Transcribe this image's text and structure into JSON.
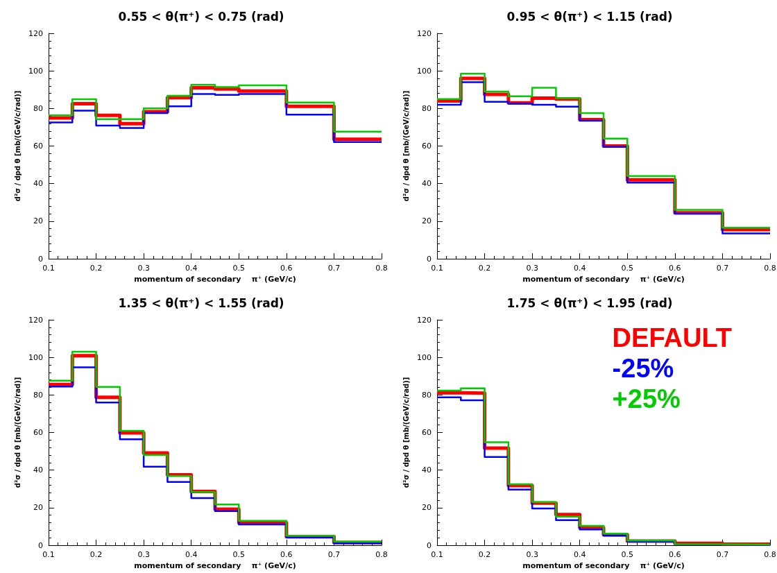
{
  "chart_data": [
    {
      "type": "histogram",
      "title": "0.55 < θ(π⁺) < 0.75 (rad)",
      "xlabel": "momentum of secondary    π⁺ (GeV/c)",
      "ylabel": "d²σ / dpd θ [mb/(GeV/c/rad)]",
      "bins": [
        0.1,
        0.15,
        0.2,
        0.25,
        0.3,
        0.35,
        0.4,
        0.45,
        0.5,
        0.6,
        0.7,
        0.8
      ],
      "xlim": [
        0.1,
        0.8
      ],
      "xticks": [
        0.1,
        0.2,
        0.3,
        0.4,
        0.5,
        0.6,
        0.7,
        0.8
      ],
      "ylim": [
        0,
        120
      ],
      "yticks": [
        0,
        20,
        40,
        60,
        80,
        100,
        120
      ],
      "grid": false,
      "legend": false,
      "series": [
        {
          "color": "#ff0000",
          "values": [
            75,
            82.5,
            76.3,
            71.9,
            78.3,
            85.8,
            91,
            90.4,
            89.3,
            81.1,
            63.6
          ]
        },
        {
          "color": "#0000ff",
          "values": [
            72.6,
            78.8,
            70.9,
            69.6,
            77.5,
            81.1,
            87.7,
            87.2,
            87.7,
            76.7,
            62.1
          ]
        },
        {
          "color": "#00cc00",
          "values": [
            76.3,
            84.9,
            74.3,
            74.3,
            80,
            86.8,
            92.6,
            91.4,
            92.3,
            83.2,
            67.7
          ]
        }
      ]
    },
    {
      "type": "histogram",
      "title": "0.95 < θ(π⁺) < 1.15 (rad)",
      "xlabel": "momentum of secondary    π⁺ (GeV/c)",
      "ylabel": "d²σ / dpd θ [mb/(GeV/c/rad)]",
      "bins": [
        0.1,
        0.15,
        0.2,
        0.25,
        0.3,
        0.35,
        0.4,
        0.45,
        0.5,
        0.6,
        0.7,
        0.8
      ],
      "xlim": [
        0.1,
        0.8
      ],
      "xticks": [
        0.1,
        0.2,
        0.3,
        0.4,
        0.5,
        0.6,
        0.7,
        0.8
      ],
      "ylim": [
        0,
        120
      ],
      "yticks": [
        0,
        20,
        40,
        60,
        80,
        100,
        120
      ],
      "grid": false,
      "legend": false,
      "series": [
        {
          "color": "#ff0000",
          "values": [
            84,
            96,
            87.5,
            83,
            85.5,
            85,
            74,
            60,
            42,
            24.5,
            15.5
          ]
        },
        {
          "color": "#0000ff",
          "values": [
            82,
            94,
            83.5,
            82.5,
            82,
            81,
            73.5,
            59.5,
            40.5,
            24,
            13.5
          ]
        },
        {
          "color": "#00cc00",
          "values": [
            85,
            98.5,
            89,
            86.5,
            91,
            85.5,
            77.5,
            64,
            44,
            26,
            16.5
          ]
        }
      ]
    },
    {
      "type": "histogram",
      "title": "1.35 < θ(π⁺) < 1.55 (rad)",
      "xlabel": "momentum of secondary    π⁺ (GeV/c)",
      "ylabel": "d²σ / dpd θ [mb/(GeV/c/rad)]",
      "bins": [
        0.1,
        0.15,
        0.2,
        0.25,
        0.3,
        0.35,
        0.4,
        0.45,
        0.5,
        0.6,
        0.7,
        0.8
      ],
      "xlim": [
        0.1,
        0.8
      ],
      "xticks": [
        0.1,
        0.2,
        0.3,
        0.4,
        0.5,
        0.6,
        0.7,
        0.8
      ],
      "ylim": [
        0,
        120
      ],
      "yticks": [
        0,
        20,
        40,
        60,
        80,
        100,
        120
      ],
      "grid": false,
      "legend": false,
      "series": [
        {
          "color": "#ff0000",
          "values": [
            85.6,
            100.9,
            78.7,
            59.8,
            49.1,
            37.5,
            28.6,
            19.2,
            12,
            4.6,
            1.5
          ]
        },
        {
          "color": "#0000ff",
          "values": [
            84.5,
            94.7,
            76,
            56.4,
            41.8,
            33.7,
            25.1,
            18.2,
            11.1,
            4.1,
            1
          ]
        },
        {
          "color": "#00cc00",
          "values": [
            87.6,
            103,
            84.3,
            60.9,
            48,
            36.8,
            28.3,
            21.7,
            13,
            5.1,
            1.9
          ]
        }
      ]
    },
    {
      "type": "histogram",
      "title": "1.75 < θ(π⁺) < 1.95 (rad)",
      "xlabel": "momentum of secondary    π⁺ (GeV/c)",
      "ylabel": "d²σ / dpd θ [mb/(GeV/c/rad)]",
      "bins": [
        0.1,
        0.15,
        0.2,
        0.25,
        0.3,
        0.35,
        0.4,
        0.45,
        0.5,
        0.6,
        0.7,
        0.8
      ],
      "xlim": [
        0.1,
        0.8
      ],
      "xticks": [
        0.1,
        0.2,
        0.3,
        0.4,
        0.5,
        0.6,
        0.7,
        0.8
      ],
      "ylim": [
        0,
        120
      ],
      "yticks": [
        0,
        20,
        40,
        60,
        80,
        100,
        120
      ],
      "grid": false,
      "legend": "top right",
      "series": [
        {
          "name": "DEFAULT",
          "color": "#ff0000",
          "values": [
            81.1,
            81,
            51.7,
            31.8,
            22.4,
            16.3,
            9.4,
            5.6,
            2.2,
            1,
            0.6
          ]
        },
        {
          "name": "-25%",
          "color": "#0000ff",
          "values": [
            78.7,
            77.2,
            47,
            29.6,
            19.6,
            13.4,
            8.4,
            5.1,
            1.9,
            0.4,
            0.2
          ]
        },
        {
          "name": "+25%",
          "color": "#00cc00",
          "values": [
            82.3,
            83.5,
            54.8,
            32.5,
            23,
            15.2,
            10.3,
            6.2,
            2.5,
            0.6,
            0.4
          ]
        }
      ]
    }
  ]
}
